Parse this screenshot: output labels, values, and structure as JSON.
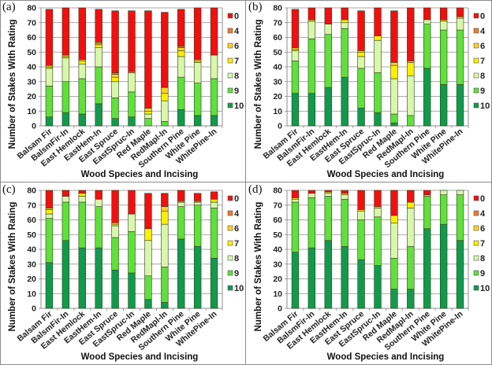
{
  "chart_data": [
    {
      "type": "bar",
      "stacked": true,
      "panel_label": "(a)",
      "xlabel": "Wood Species and Incising",
      "ylabel": "Number of Stakes With Rating",
      "ylim": [
        0,
        80
      ],
      "yticks": [
        0,
        10,
        20,
        30,
        40,
        50,
        60,
        70,
        80
      ],
      "grid": true,
      "legend_position": "right",
      "categories": [
        "Balsam Fir",
        "BalsmFir-In",
        "East Hemlock",
        "EastHem-In",
        "East Spruce",
        "EastSpruc-In",
        "Red Maple",
        "RedMapl-In",
        "Southern Pine",
        "White Pine",
        "WhitePine-In"
      ],
      "series": [
        {
          "name": "10",
          "values": [
            6,
            9,
            8,
            15,
            5,
            6,
            0,
            0,
            11,
            7,
            7
          ]
        },
        {
          "name": "9",
          "values": [
            21,
            21,
            24,
            25,
            14,
            17,
            5,
            3,
            22,
            22,
            25
          ]
        },
        {
          "name": "8",
          "values": [
            12,
            16,
            10,
            13,
            11,
            13,
            3,
            14,
            14,
            14,
            16
          ]
        },
        {
          "name": "7",
          "values": [
            1,
            1,
            2,
            2,
            3,
            0,
            2,
            5,
            4,
            1,
            0
          ]
        },
        {
          "name": "6",
          "values": [
            1,
            1,
            1,
            1,
            2,
            0,
            2,
            4,
            2,
            1,
            0
          ]
        },
        {
          "name": "4",
          "values": [
            0,
            0,
            0,
            1,
            1,
            1,
            0,
            0,
            1,
            0,
            0
          ]
        },
        {
          "name": "0",
          "values": [
            38,
            32,
            35,
            22,
            42,
            41,
            66,
            51,
            25,
            35,
            32
          ]
        }
      ]
    },
    {
      "type": "bar",
      "stacked": true,
      "panel_label": "(b)",
      "xlabel": "Wood Species and Incising",
      "ylabel": "Number of Stakes With Rating",
      "ylim": [
        0,
        80
      ],
      "yticks": [
        0,
        10,
        20,
        30,
        40,
        50,
        60,
        70,
        80
      ],
      "grid": true,
      "legend_position": "right",
      "categories": [
        "Balsam Fir",
        "BalsmFir-In",
        "East Hemlock",
        "EastHem-In",
        "East Spruce",
        "EastSpruc-In",
        "Red Maple",
        "RedMapl-In",
        "Southern Pine",
        "White Pine",
        "WhitePine-In"
      ],
      "series": [
        {
          "name": "10",
          "values": [
            22,
            22,
            26,
            33,
            12,
            9,
            2,
            0,
            39,
            28,
            28
          ]
        },
        {
          "name": "9",
          "values": [
            22,
            37,
            36,
            33,
            27,
            27,
            6,
            7,
            30,
            37,
            37
          ]
        },
        {
          "name": "8",
          "values": [
            7,
            12,
            7,
            4,
            8,
            22,
            24,
            27,
            3,
            6,
            8
          ]
        },
        {
          "name": "7",
          "values": [
            1,
            0,
            0,
            2,
            3,
            3,
            9,
            9,
            0,
            0,
            0
          ]
        },
        {
          "name": "6",
          "values": [
            1,
            1,
            0,
            0,
            1,
            0,
            2,
            1,
            0,
            1,
            1
          ]
        },
        {
          "name": "4",
          "values": [
            0,
            0,
            0,
            0,
            0,
            0,
            0,
            0,
            0,
            0,
            0
          ]
        },
        {
          "name": "0",
          "values": [
            26,
            8,
            11,
            8,
            27,
            19,
            35,
            36,
            8,
            8,
            6
          ]
        }
      ]
    },
    {
      "type": "bar",
      "stacked": true,
      "panel_label": "(c)",
      "xlabel": "Wood Species and Incising",
      "ylabel": "Number of Stakes With Rating",
      "ylim": [
        0,
        80
      ],
      "yticks": [
        0,
        10,
        20,
        30,
        40,
        50,
        60,
        70,
        80
      ],
      "grid": true,
      "legend_position": "right",
      "categories": [
        "Balsam Fir",
        "BalsmFir-In",
        "East Hemlock",
        "EastHem-In",
        "East Spruce",
        "EastSpruc-In",
        "Red Maple",
        "RedMapl-In",
        "Southern Pine",
        "White Pine",
        "WhitePine-In"
      ],
      "series": [
        {
          "name": "10",
          "values": [
            31,
            46,
            41,
            41,
            26,
            24,
            6,
            4,
            47,
            42,
            34
          ]
        },
        {
          "name": "9",
          "values": [
            30,
            26,
            31,
            28,
            22,
            28,
            16,
            24,
            22,
            28,
            34
          ]
        },
        {
          "name": "8",
          "values": [
            3,
            4,
            4,
            5,
            8,
            12,
            24,
            29,
            3,
            2,
            4
          ]
        },
        {
          "name": "7",
          "values": [
            3,
            0,
            2,
            0,
            1,
            0,
            8,
            9,
            0,
            0,
            2
          ]
        },
        {
          "name": "6",
          "values": [
            1,
            0,
            0,
            0,
            1,
            0,
            0,
            3,
            0,
            0,
            0
          ]
        },
        {
          "name": "4",
          "values": [
            0,
            0,
            0,
            0,
            0,
            0,
            0,
            0,
            1,
            1,
            0
          ]
        },
        {
          "name": "0",
          "values": [
            12,
            4,
            2,
            6,
            22,
            16,
            24,
            9,
            7,
            5,
            5
          ]
        }
      ]
    },
    {
      "type": "bar",
      "stacked": true,
      "panel_label": "(d)",
      "xlabel": "Wood Species and Incising",
      "ylabel": "Number of Stakes With Rating",
      "ylim": [
        0,
        80
      ],
      "yticks": [
        0,
        10,
        20,
        30,
        40,
        50,
        60,
        70,
        80
      ],
      "grid": true,
      "legend_position": "right",
      "categories": [
        "Balsam Fir",
        "BalsmFir-In",
        "East Hemlock",
        "EastHem-In",
        "East Spruce",
        "EastSpruc-In",
        "Red Maple",
        "RedMapl-In",
        "Southern Pine",
        "White Pine",
        "WhitePine-In"
      ],
      "series": [
        {
          "name": "10",
          "values": [
            38,
            41,
            46,
            42,
            33,
            29,
            13,
            13,
            54,
            57,
            46
          ]
        },
        {
          "name": "9",
          "values": [
            34,
            34,
            30,
            32,
            27,
            33,
            21,
            29,
            22,
            20,
            31
          ]
        },
        {
          "name": "8",
          "values": [
            2,
            3,
            2,
            3,
            6,
            6,
            24,
            26,
            0,
            3,
            3
          ]
        },
        {
          "name": "7",
          "values": [
            0,
            0,
            0,
            0,
            0,
            0,
            5,
            4,
            0,
            0,
            0
          ]
        },
        {
          "name": "6",
          "values": [
            1,
            0,
            1,
            1,
            1,
            1,
            0,
            0,
            1,
            0,
            0
          ]
        },
        {
          "name": "4",
          "values": [
            0,
            0,
            0,
            0,
            0,
            0,
            0,
            0,
            0,
            0,
            0
          ]
        },
        {
          "name": "0",
          "values": [
            5,
            2,
            1,
            2,
            13,
            11,
            17,
            8,
            3,
            0,
            0
          ]
        }
      ]
    }
  ],
  "legend": {
    "order": [
      "0",
      "4",
      "6",
      "7",
      "8",
      "9",
      "10"
    ]
  },
  "colors": {
    "10": "#129a4c",
    "9": "#5fe03a",
    "8": "#d8f7a8",
    "7": "#ffee00",
    "6": "#ffd21f",
    "4": "#ee7c28",
    "0": "#f20f0f",
    "grid": "#8c8c8c",
    "bar_edge": "#2f3d1d"
  }
}
